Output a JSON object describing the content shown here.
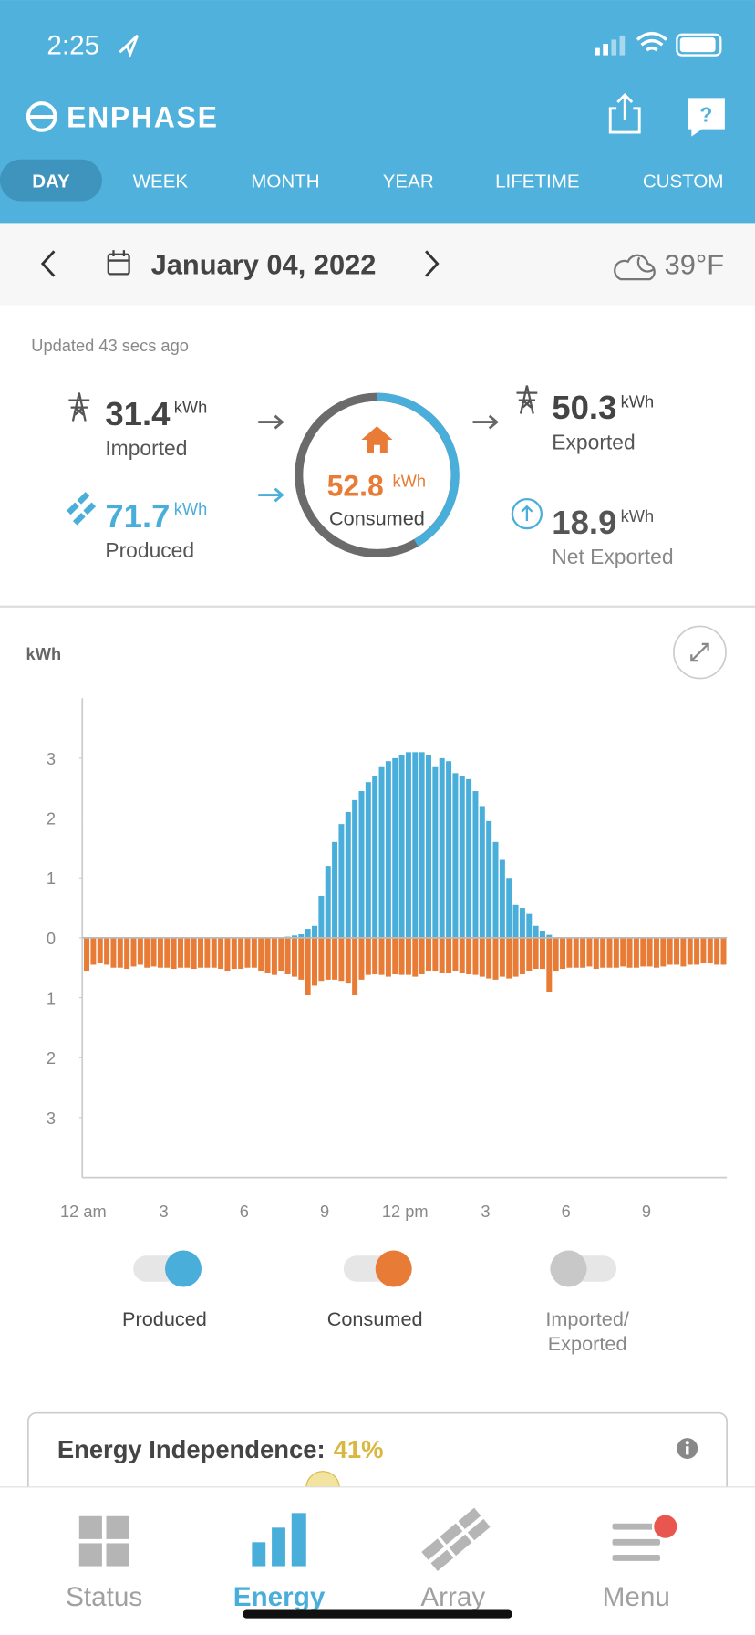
{
  "status_bar": {
    "time": "2:25"
  },
  "header": {
    "brand": "ENPHASE"
  },
  "tabs": {
    "items": [
      "DAY",
      "WEEK",
      "MONTH",
      "YEAR",
      "LIFETIME",
      "CUSTOM"
    ],
    "active": 0
  },
  "date_bar": {
    "date": "January 04, 2022",
    "weather": "39°F"
  },
  "summary": {
    "updated": "Updated 43 secs ago",
    "imported": {
      "value": 31.4,
      "unit": "kWh",
      "label": "Imported"
    },
    "produced": {
      "value": 71.7,
      "unit": "kWh",
      "label": "Produced"
    },
    "consumed": {
      "value": 52.8,
      "unit": "kWh",
      "label": "Consumed"
    },
    "exported": {
      "value": 50.3,
      "unit": "kWh",
      "label": "Exported"
    },
    "net_exported": {
      "value": 18.9,
      "unit": "kWh",
      "label": "Net Exported"
    }
  },
  "chart_data": {
    "type": "bar",
    "y_label": "kWh",
    "x": [
      0,
      0.25,
      0.5,
      0.75,
      1,
      1.25,
      1.5,
      1.75,
      2,
      2.25,
      2.5,
      2.75,
      3,
      3.25,
      3.5,
      3.75,
      4,
      4.25,
      4.5,
      4.75,
      5,
      5.25,
      5.5,
      5.75,
      6,
      6.25,
      6.5,
      6.75,
      7,
      7.25,
      7.5,
      7.75,
      8,
      8.25,
      8.5,
      8.75,
      9,
      9.25,
      9.5,
      9.75,
      10,
      10.25,
      10.5,
      10.75,
      11,
      11.25,
      11.5,
      11.75,
      12,
      12.25,
      12.5,
      12.75,
      13,
      13.25,
      13.5,
      13.75,
      14,
      14.25,
      14.5,
      14.75,
      15,
      15.25,
      15.5,
      15.75,
      16,
      16.25,
      16.5,
      16.75,
      17,
      17.25,
      17.5,
      17.75,
      18,
      18.25,
      18.5,
      18.75,
      19,
      19.25,
      19.5,
      19.75,
      20,
      20.25,
      20.5,
      20.75,
      21,
      21.25,
      21.5,
      21.75,
      22,
      22.25,
      22.5,
      22.75,
      23,
      23.25,
      23.5,
      23.75
    ],
    "bar_width": 0.25,
    "series": [
      {
        "name": "Produced",
        "color": "#4aaedb",
        "enabled": true,
        "values": [
          0,
          0,
          0,
          0,
          0,
          0,
          0,
          0,
          0,
          0,
          0,
          0,
          0,
          0,
          0,
          0,
          0,
          0,
          0,
          0,
          0,
          0,
          0,
          0,
          0,
          0,
          0,
          0,
          0,
          0.01,
          0.02,
          0.04,
          0.06,
          0.15,
          0.2,
          0.7,
          1.2,
          1.6,
          1.9,
          2.1,
          2.3,
          2.45,
          2.6,
          2.7,
          2.85,
          2.95,
          3.0,
          3.05,
          3.1,
          3.1,
          3.1,
          3.05,
          2.85,
          3.0,
          2.95,
          2.75,
          2.7,
          2.65,
          2.45,
          2.2,
          1.95,
          1.6,
          1.3,
          1.0,
          0.55,
          0.5,
          0.4,
          0.2,
          0.12,
          0.05,
          0.01,
          0,
          0,
          0,
          0,
          0,
          0,
          0,
          0,
          0,
          0,
          0,
          0,
          0,
          0,
          0,
          0,
          0,
          0,
          0,
          0,
          0,
          0,
          0,
          0,
          0
        ]
      },
      {
        "name": "Consumed",
        "color": "#e87b35",
        "enabled": true,
        "values": [
          -0.55,
          -0.45,
          -0.42,
          -0.45,
          -0.5,
          -0.5,
          -0.52,
          -0.48,
          -0.45,
          -0.5,
          -0.48,
          -0.5,
          -0.5,
          -0.52,
          -0.5,
          -0.5,
          -0.52,
          -0.5,
          -0.5,
          -0.5,
          -0.52,
          -0.55,
          -0.52,
          -0.52,
          -0.5,
          -0.5,
          -0.55,
          -0.58,
          -0.62,
          -0.55,
          -0.6,
          -0.65,
          -0.7,
          -0.95,
          -0.8,
          -0.72,
          -0.7,
          -0.7,
          -0.72,
          -0.75,
          -0.95,
          -0.7,
          -0.62,
          -0.6,
          -0.62,
          -0.65,
          -0.6,
          -0.62,
          -0.62,
          -0.65,
          -0.6,
          -0.55,
          -0.55,
          -0.58,
          -0.58,
          -0.55,
          -0.58,
          -0.6,
          -0.62,
          -0.65,
          -0.68,
          -0.7,
          -0.65,
          -0.68,
          -0.65,
          -0.6,
          -0.55,
          -0.52,
          -0.52,
          -0.9,
          -0.55,
          -0.52,
          -0.5,
          -0.5,
          -0.5,
          -0.48,
          -0.52,
          -0.5,
          -0.5,
          -0.5,
          -0.48,
          -0.5,
          -0.5,
          -0.48,
          -0.48,
          -0.5,
          -0.48,
          -0.45,
          -0.45,
          -0.48,
          -0.45,
          -0.45,
          -0.42,
          -0.42,
          -0.45,
          -0.45
        ]
      }
    ],
    "extra_toggle": {
      "label_lines": [
        "Imported/",
        "Exported"
      ],
      "enabled": false
    },
    "xlim": [
      0,
      24
    ],
    "xticks": [
      {
        "value": 0,
        "label": "12 am"
      },
      3,
      6,
      9,
      {
        "value": 12,
        "label": "12 pm"
      },
      {
        "value": 15,
        "label": "3"
      },
      {
        "value": 18,
        "label": "6"
      },
      {
        "value": 21,
        "label": "9"
      }
    ],
    "ylim": [
      -4,
      4
    ],
    "yticks": [
      3,
      2,
      1,
      0,
      {
        "value": -1,
        "label": "1"
      },
      {
        "value": -2,
        "label": "2"
      },
      {
        "value": -3,
        "label": "3"
      }
    ]
  },
  "independence": {
    "title": "Energy Independence:",
    "value": "41%"
  },
  "nav": {
    "items": [
      "Status",
      "Energy",
      "Array",
      "Menu"
    ],
    "active": 1
  }
}
